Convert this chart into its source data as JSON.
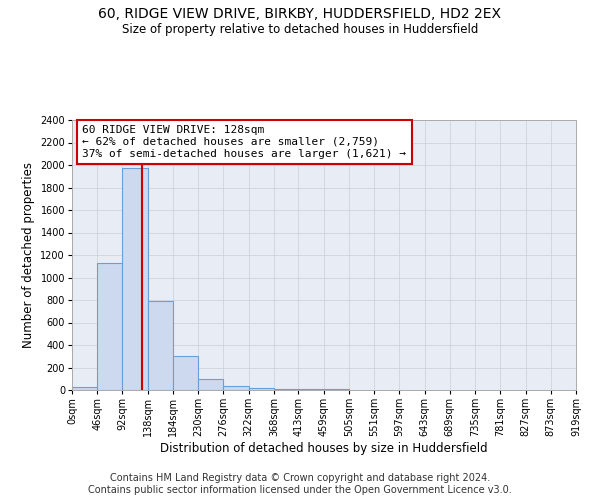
{
  "title": "60, RIDGE VIEW DRIVE, BIRKBY, HUDDERSFIELD, HD2 2EX",
  "subtitle": "Size of property relative to detached houses in Huddersfield",
  "xlabel": "Distribution of detached houses by size in Huddersfield",
  "ylabel": "Number of detached properties",
  "footer1": "Contains HM Land Registry data © Crown copyright and database right 2024.",
  "footer2": "Contains public sector information licensed under the Open Government Licence v3.0.",
  "bin_edges": [
    0,
    46,
    92,
    138,
    184,
    230,
    276,
    322,
    368,
    413,
    459,
    505,
    551,
    597,
    643,
    689,
    735,
    781,
    827,
    873,
    919
  ],
  "bar_heights": [
    25,
    1130,
    1970,
    790,
    300,
    100,
    38,
    20,
    12,
    8,
    5,
    0,
    0,
    0,
    0,
    0,
    0,
    0,
    0,
    0
  ],
  "bar_color": "#ccd9ee",
  "bar_edge_color": "#6a9fd8",
  "vline_x": 128,
  "vline_color": "#cc0000",
  "annotation_line1": "60 RIDGE VIEW DRIVE: 128sqm",
  "annotation_line2": "← 62% of detached houses are smaller (2,759)",
  "annotation_line3": "37% of semi-detached houses are larger (1,621) →",
  "annotation_box_color": "#cc0000",
  "ylim": [
    0,
    2400
  ],
  "yticks": [
    0,
    200,
    400,
    600,
    800,
    1000,
    1200,
    1400,
    1600,
    1800,
    2000,
    2200,
    2400
  ],
  "grid_color": "#c8d0dc",
  "background_color": "#e8edf5",
  "title_fontsize": 10,
  "subtitle_fontsize": 8.5,
  "axis_label_fontsize": 8.5,
  "tick_fontsize": 7,
  "annotation_fontsize": 8,
  "footer_fontsize": 7
}
